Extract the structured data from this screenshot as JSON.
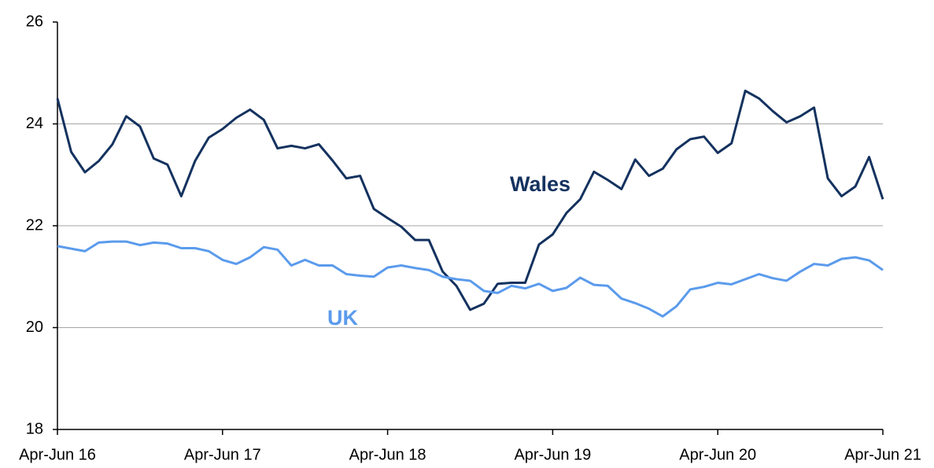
{
  "chart_data": {
    "type": "line",
    "categories": [
      "Apr-Jun 16",
      null,
      null,
      null,
      null,
      null,
      null,
      null,
      null,
      null,
      null,
      null,
      "Apr-Jun 17",
      null,
      null,
      null,
      null,
      null,
      null,
      null,
      null,
      null,
      null,
      null,
      "Apr-Jun 18",
      null,
      null,
      null,
      null,
      null,
      null,
      null,
      null,
      null,
      null,
      null,
      "Apr-Jun 19",
      null,
      null,
      null,
      null,
      null,
      null,
      null,
      null,
      null,
      null,
      null,
      "Apr-Jun 20",
      null,
      null,
      null,
      null,
      null,
      null,
      null,
      null,
      null,
      null,
      null,
      "Apr-Jun 21"
    ],
    "series": [
      {
        "name": "Wales",
        "color": "#14325f",
        "values": [
          24.5,
          23.45,
          23.05,
          23.27,
          23.6,
          24.15,
          23.95,
          23.32,
          23.2,
          22.58,
          23.27,
          23.73,
          23.9,
          24.12,
          24.28,
          24.08,
          23.52,
          23.57,
          23.52,
          23.6,
          23.28,
          22.93,
          22.98,
          22.33,
          22.15,
          21.98,
          21.72,
          21.72,
          21.1,
          20.82,
          20.35,
          20.47,
          20.86,
          20.88,
          20.88,
          21.63,
          21.83,
          22.25,
          22.52,
          23.06,
          22.9,
          22.72,
          23.3,
          22.98,
          23.12,
          23.5,
          23.7,
          23.75,
          23.43,
          23.62,
          24.65,
          24.5,
          24.25,
          24.03,
          24.15,
          24.32,
          22.93,
          22.58,
          22.77,
          23.35,
          22.52
        ]
      },
      {
        "name": "UK",
        "color": "#5b9bec",
        "values": [
          21.6,
          21.55,
          21.5,
          21.67,
          21.69,
          21.69,
          21.62,
          21.67,
          21.65,
          21.56,
          21.56,
          21.5,
          21.33,
          21.25,
          21.38,
          21.58,
          21.53,
          21.22,
          21.33,
          21.22,
          21.22,
          21.05,
          21.02,
          21.0,
          21.18,
          21.22,
          21.17,
          21.13,
          21.0,
          20.95,
          20.92,
          20.72,
          20.68,
          20.82,
          20.77,
          20.86,
          20.72,
          20.78,
          20.98,
          20.84,
          20.82,
          20.57,
          20.48,
          20.37,
          20.22,
          20.42,
          20.75,
          20.8,
          20.88,
          20.85,
          20.95,
          21.05,
          20.97,
          20.92,
          21.1,
          21.25,
          21.22,
          21.35,
          21.38,
          21.32,
          21.13
        ]
      }
    ],
    "ylim": [
      18,
      26
    ],
    "yticks": [
      18,
      20,
      22,
      24,
      26
    ],
    "grid": true
  }
}
